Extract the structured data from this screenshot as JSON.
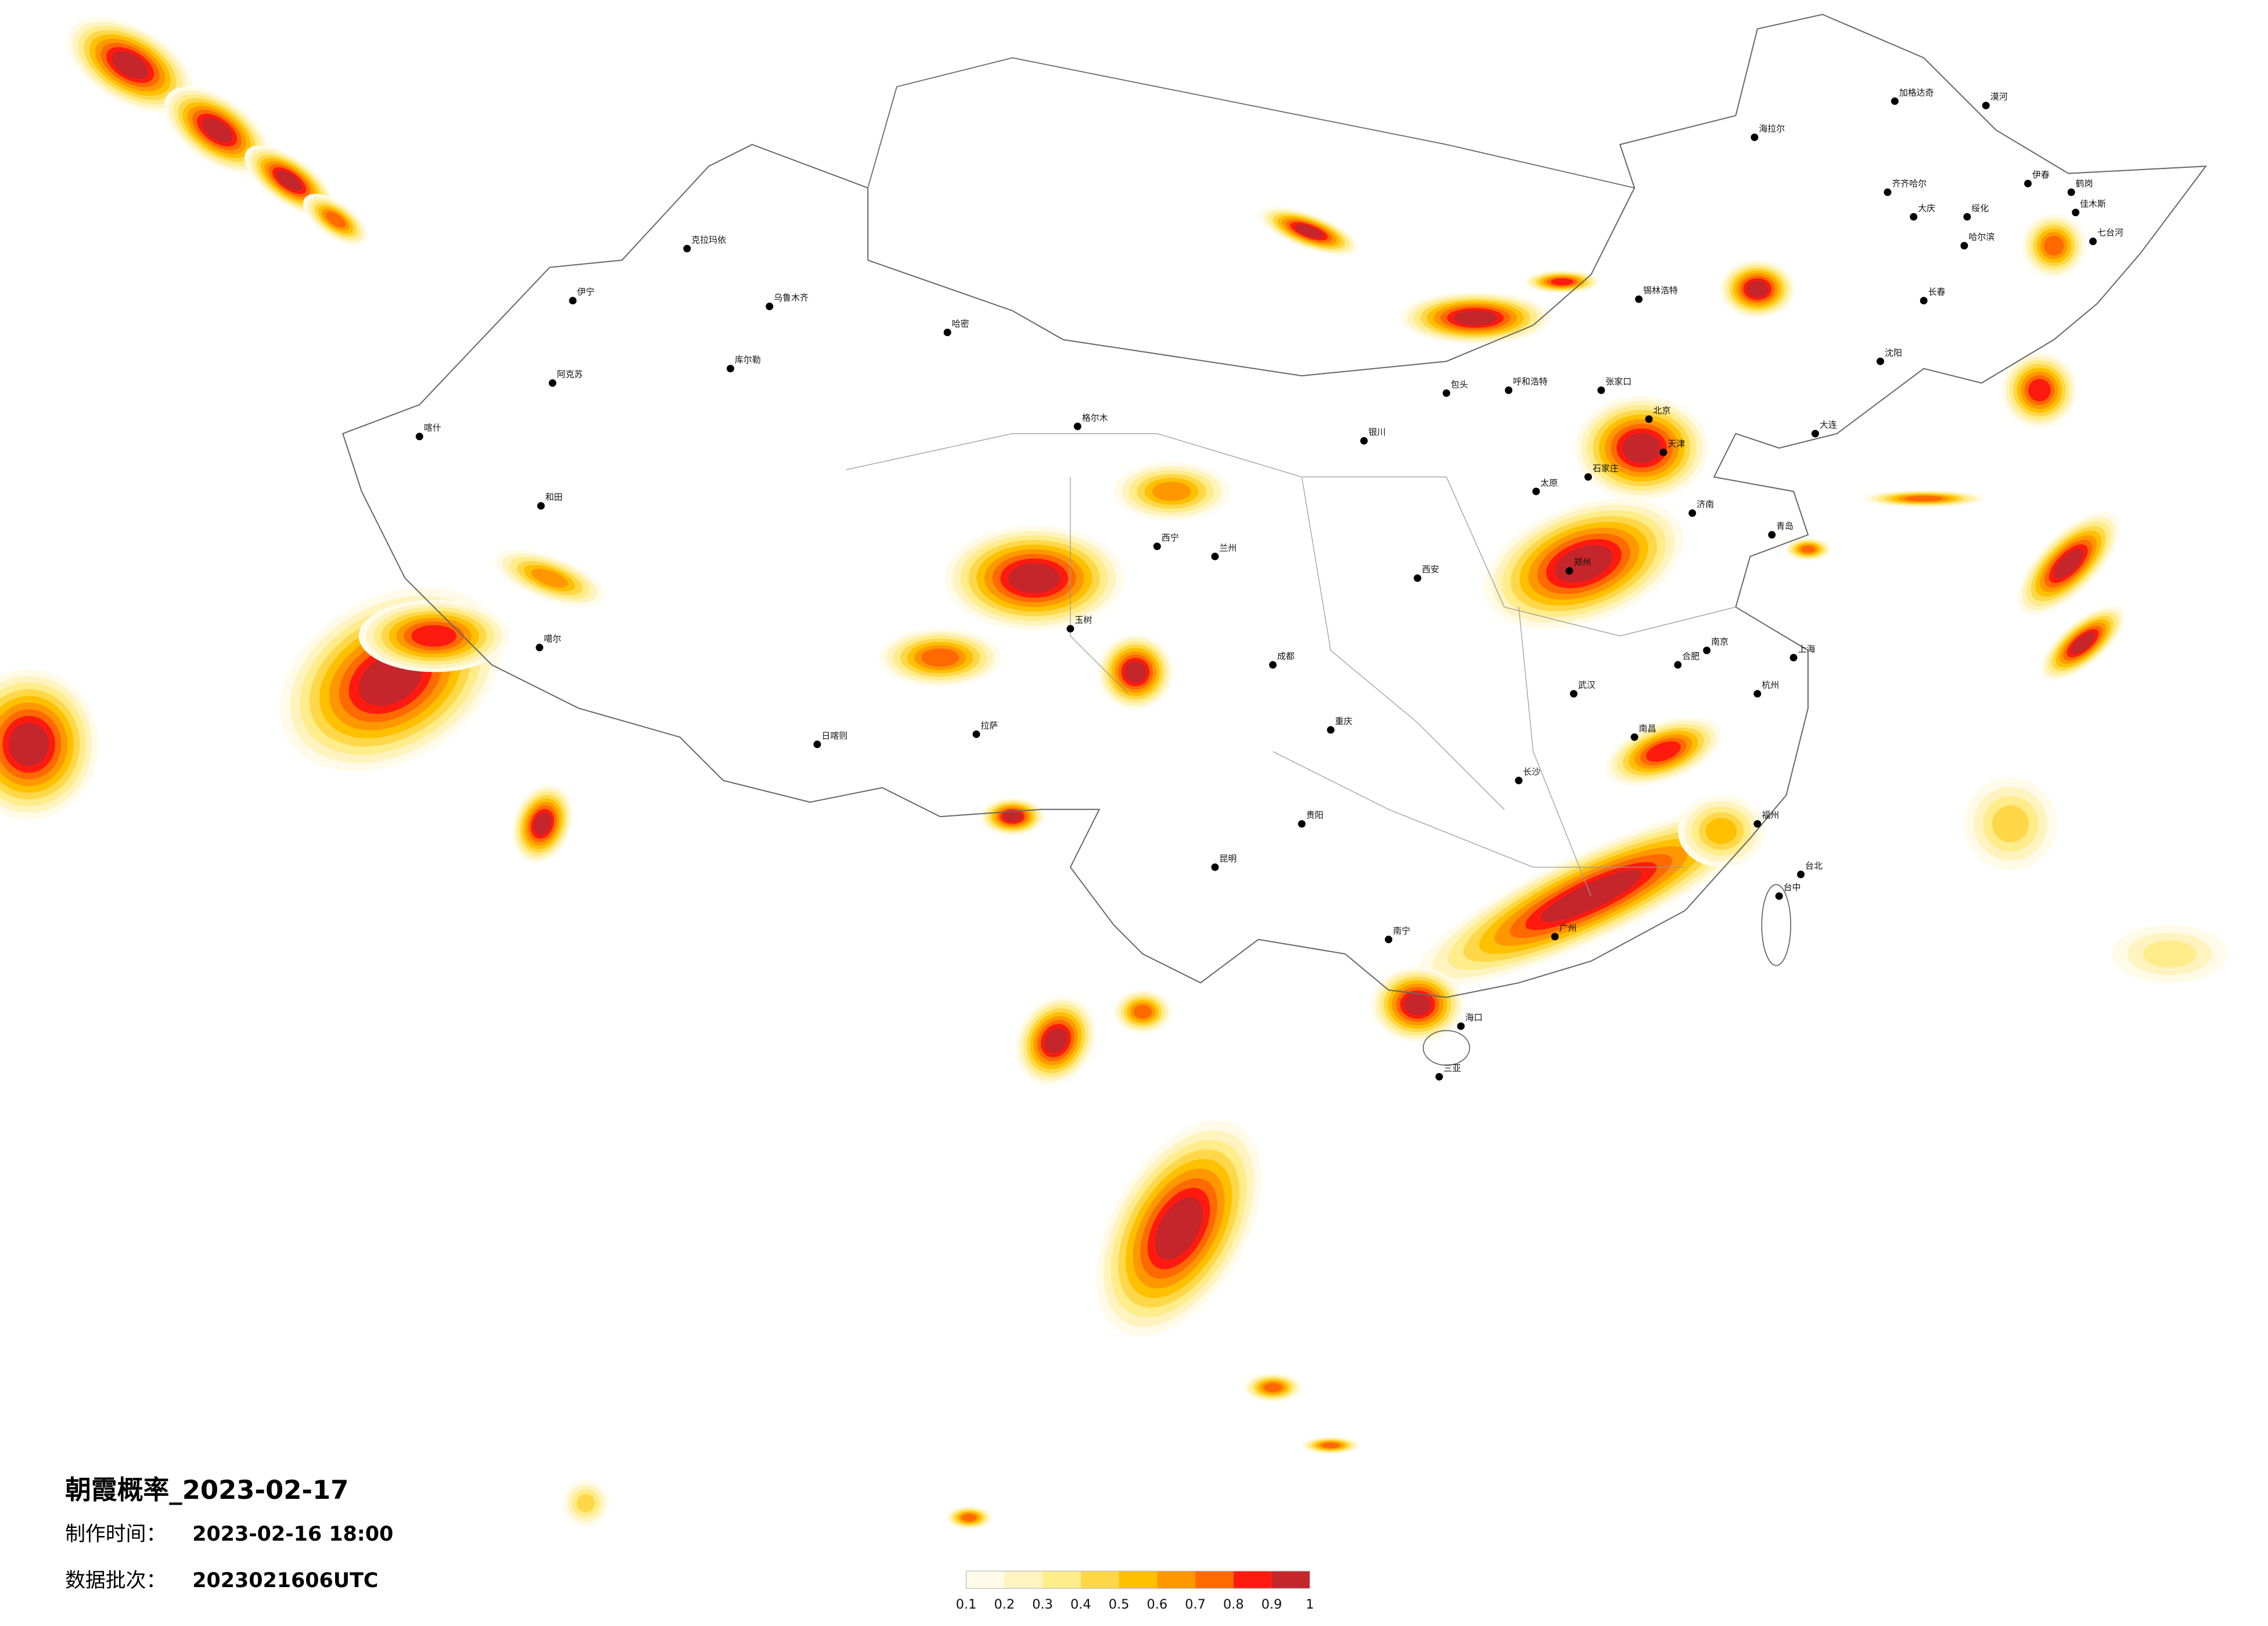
{
  "title": "朝霞概率_2023-02-17",
  "made_time": {
    "label": "制作时间：",
    "value": "2023-02-16 18:00"
  },
  "batch": {
    "label": "数据批次：",
    "value": "2023021606UTC"
  },
  "legend": {
    "ticks": [
      0.1,
      0.2,
      0.3,
      0.4,
      0.5,
      0.6,
      0.7,
      0.8,
      0.9,
      1
    ],
    "colors": [
      "#fffbe8",
      "#fff3c0",
      "#ffec8a",
      "#ffd84a",
      "#ffc000",
      "#ff9800",
      "#ff6a00",
      "#ff1a10",
      "#c4262c"
    ]
  },
  "cities": [
    "漠河",
    "加格达奇",
    "海拉尔",
    "齐齐哈尔",
    "大庆",
    "伊春",
    "鹤岗",
    "佳木斯",
    "哈尔滨",
    "绥化",
    "七台河",
    "长春",
    "锡林浩特",
    "呼和浩特",
    "包头",
    "张家口",
    "北京",
    "天津",
    "石家庄",
    "太原",
    "济南",
    "郑州",
    "西安",
    "兰州",
    "西宁",
    "银川",
    "拉萨",
    "日喀则",
    "乌鲁木齐",
    "克拉玛依",
    "伊宁",
    "阿克苏",
    "喀什",
    "和田",
    "成都",
    "重庆",
    "贵阳",
    "昆明",
    "南宁",
    "广州",
    "长沙",
    "武汉",
    "南昌",
    "杭州",
    "上海",
    "南京",
    "福州",
    "台北",
    "海口",
    "合肥",
    "哈密",
    "库尔勒",
    "格尔木",
    "玉树",
    "噶尔",
    "青岛",
    "沈阳",
    "大连",
    "三亚",
    "台中"
  ]
}
